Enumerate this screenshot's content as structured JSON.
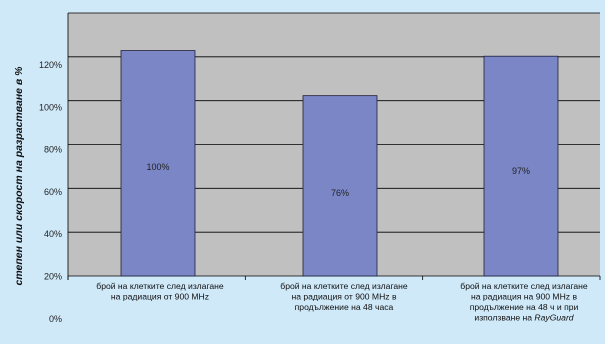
{
  "chart_data": {
    "type": "bar",
    "ylabel": "степен или скорост на разрастване в %",
    "y_tick_labels": [
      "0%",
      "20%",
      "40%",
      "60%",
      "80%",
      "100%",
      "120%"
    ],
    "ylim": [
      0,
      140
    ],
    "grid": true,
    "categories": [
      {
        "lines": [
          "брой на клетките след излагане",
          "на радиация от 900 MHz"
        ],
        "italic_tail": ""
      },
      {
        "lines": [
          "брой на клетките след излагане",
          "на радиация от 900 MHz в",
          "продължение на 48 часа"
        ],
        "italic_tail": ""
      },
      {
        "lines": [
          "брой на клетките след излагане",
          "на радиация на 900 MHz в",
          "продължение на 48 ч и при",
          "използване на "
        ],
        "italic_tail": "RayGuard"
      }
    ],
    "values": [
      120,
      96,
      117
    ],
    "data_labels": [
      "100%",
      "76%",
      "97%"
    ],
    "colors": {
      "bar": "#7b86c6",
      "bar_stroke": "#1f1f3a",
      "plot_bg": "#c0c0c0",
      "background": "#cfe9f9",
      "grid": "#000000"
    }
  }
}
